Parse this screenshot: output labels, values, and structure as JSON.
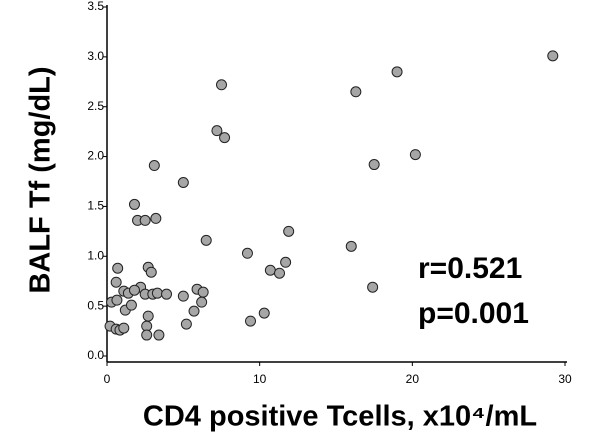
{
  "chart_data": {
    "type": "scatter",
    "xlabel": "CD4 positive Tcells, x10⁴/mL",
    "ylabel": "BALF Tf (mg/dL)",
    "annotations": [
      "r=0.521",
      "p=0.001"
    ],
    "color": "#a6a6a6",
    "xlim": [
      0,
      30
    ],
    "xticks": [
      0,
      10,
      20,
      30
    ],
    "ylim": [
      0,
      3.5
    ],
    "yticks": [
      {
        "value": 0,
        "label": "0.0"
      },
      {
        "value": 0.5,
        "label": "0.5"
      },
      {
        "value": 1,
        "label": "1.0"
      },
      {
        "value": 1.5,
        "label": "1.5"
      },
      {
        "value": 2,
        "label": "2.0"
      },
      {
        "value": 2.5,
        "label": "2.5"
      },
      {
        "value": 3,
        "label": "3.0"
      },
      {
        "value": 3.5,
        "label": "3.5"
      }
    ],
    "x": [
      29.2,
      19.0,
      16.3,
      7.5,
      7.2,
      7.7,
      3.1,
      5.0,
      20.2,
      17.5,
      1.8,
      2.0,
      2.5,
      3.2,
      6.5,
      11.9,
      16.0,
      9.2,
      11.7,
      10.7,
      11.3,
      17.4,
      0.7,
      2.7,
      2.9,
      2.2,
      0.6,
      1.1,
      1.4,
      1.8,
      2.5,
      3.0,
      3.3,
      3.9,
      5.0,
      5.9,
      6.3,
      6.2,
      5.7,
      0.3,
      0.65,
      1.2,
      1.6,
      0.2,
      0.6,
      0.85,
      1.1,
      2.6,
      2.7,
      2.6,
      3.4,
      5.2,
      9.4,
      10.3
    ],
    "y": [
      3.01,
      2.85,
      2.65,
      2.72,
      2.26,
      2.19,
      1.91,
      1.74,
      2.02,
      1.92,
      1.52,
      1.36,
      1.36,
      1.38,
      1.16,
      1.25,
      1.1,
      1.03,
      0.94,
      0.86,
      0.83,
      0.69,
      0.88,
      0.89,
      0.84,
      0.69,
      0.74,
      0.65,
      0.63,
      0.66,
      0.62,
      0.62,
      0.63,
      0.62,
      0.6,
      0.67,
      0.64,
      0.54,
      0.45,
      0.54,
      0.56,
      0.46,
      0.51,
      0.3,
      0.27,
      0.26,
      0.28,
      0.3,
      0.4,
      0.21,
      0.21,
      0.32,
      0.35,
      0.43
    ]
  }
}
